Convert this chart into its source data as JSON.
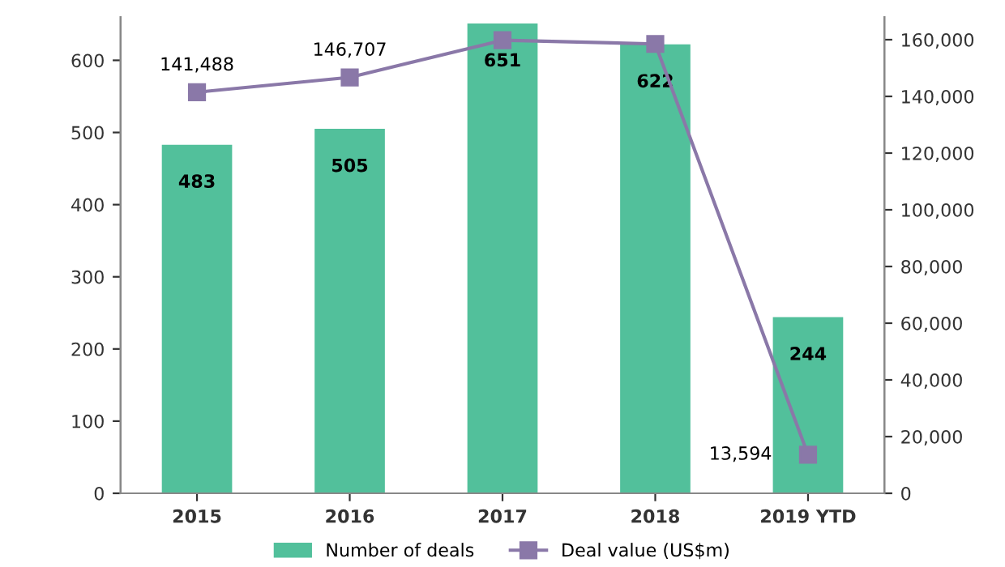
{
  "chart_data": {
    "type": "bar",
    "categories": [
      "2015",
      "2016",
      "2017",
      "2018",
      "2019 YTD"
    ],
    "series": [
      {
        "name": "Number of deals",
        "color": "#52c09b",
        "values": [
          483,
          505,
          651,
          622,
          244
        ],
        "data_labels": true
      },
      {
        "name": "Deal value (US$m)",
        "type": "line",
        "axis": "y2",
        "color": "#8a78a8",
        "marker": "square",
        "values": [
          141488,
          146707,
          159800,
          158500,
          13594
        ],
        "value_labels": [
          "141,488",
          "146,707",
          null,
          null,
          "13,594"
        ]
      }
    ],
    "ylim": [
      0,
      660
    ],
    "yticks": [
      0,
      100,
      200,
      300,
      400,
      500,
      600
    ],
    "y2lim": [
      0,
      168000
    ],
    "y2ticks": [
      {
        "value": 0,
        "label": "0"
      },
      {
        "value": 20000,
        "label": "20,000"
      },
      {
        "value": 40000,
        "label": "40,000"
      },
      {
        "value": 60000,
        "label": "60,000"
      },
      {
        "value": 80000,
        "label": "80,000"
      },
      {
        "value": 100000,
        "label": "100,000"
      },
      {
        "value": 120000,
        "label": "120,000"
      },
      {
        "value": 140000,
        "label": "140,000"
      },
      {
        "value": 160000,
        "label": "160,000"
      }
    ],
    "legend": "bottom",
    "grid": false
  }
}
